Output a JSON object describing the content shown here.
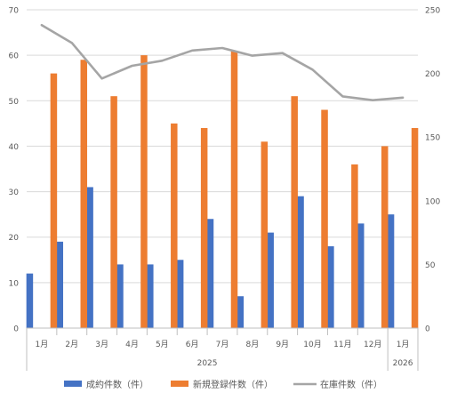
{
  "chart_data": {
    "type": "bar",
    "categories": [
      "1月",
      "2月",
      "3月",
      "4月",
      "5月",
      "6月",
      "7月",
      "8月",
      "9月",
      "10月",
      "11月",
      "12月",
      "1月"
    ],
    "year_labels": [
      {
        "label": "2025",
        "start": 0,
        "end": 11
      },
      {
        "label": "2026",
        "start": 12,
        "end": 12
      }
    ],
    "series": [
      {
        "name": "成約件数（件）",
        "type": "bar",
        "axis": "left",
        "color": "#4472C4",
        "values": [
          12,
          19,
          31,
          14,
          14,
          15,
          24,
          7,
          21,
          29,
          18,
          23,
          25
        ]
      },
      {
        "name": "新規登録件数（件）",
        "type": "bar",
        "axis": "left",
        "color": "#ED7D31",
        "values": [
          56,
          59,
          51,
          60,
          45,
          44,
          61,
          41,
          51,
          48,
          36,
          40,
          44
        ]
      },
      {
        "name": "在庫件数（件）",
        "type": "line",
        "axis": "right",
        "color": "#A5A5A5",
        "values": [
          238,
          224,
          196,
          206,
          210,
          218,
          220,
          214,
          216,
          203,
          182,
          179,
          181
        ]
      }
    ],
    "y_left": {
      "min": 0,
      "max": 70,
      "ticks": [
        0,
        10,
        20,
        30,
        40,
        50,
        60,
        70
      ]
    },
    "y_right": {
      "min": 0,
      "max": 250,
      "ticks": [
        0,
        50,
        100,
        150,
        200,
        250
      ]
    },
    "grid": true,
    "legend_position": "bottom"
  }
}
